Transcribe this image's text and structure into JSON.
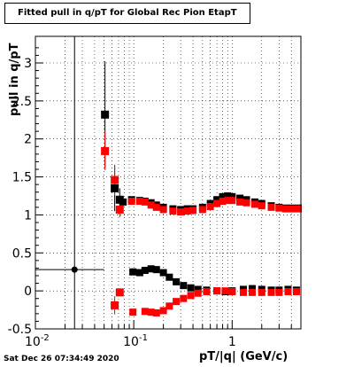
{
  "chart_data": {
    "type": "scatter",
    "title": "Fitted pull in q/pT for Global Rec Pion EtapT",
    "xlabel": "pT/|q| (GeV/c)",
    "ylabel": "pull in q/pT",
    "xscale": "log",
    "xlim": [
      0.01,
      5.0
    ],
    "ylim": [
      -0.5,
      3.35
    ],
    "x_ticks": [
      "10^-2",
      "10^-1",
      "1"
    ],
    "y_ticks": [
      "-0.5",
      "0",
      "0.5",
      "1",
      "1.5",
      "2",
      "2.5",
      "3"
    ],
    "grid": true,
    "series": [
      {
        "color": "#000000",
        "points": [
          {
            "x": 0.025,
            "y": 0.28,
            "xerr_lo": 0.015,
            "xerr_hi": 0.025,
            "yerr": 3.1
          },
          {
            "x": 0.051,
            "y": 2.32,
            "yerr": 0.7
          },
          {
            "x": 0.064,
            "y": 1.35,
            "yerr": 0.3
          },
          {
            "x": 0.072,
            "y": 1.2,
            "yerr": 0.15
          },
          {
            "x": 0.078,
            "y": 1.17
          },
          {
            "x": 0.095,
            "y": 1.2
          },
          {
            "x": 0.115,
            "y": 1.19
          },
          {
            "x": 0.13,
            "y": 1.18
          },
          {
            "x": 0.15,
            "y": 1.16
          },
          {
            "x": 0.17,
            "y": 1.13
          },
          {
            "x": 0.2,
            "y": 1.1
          },
          {
            "x": 0.25,
            "y": 1.08
          },
          {
            "x": 0.3,
            "y": 1.07
          },
          {
            "x": 0.35,
            "y": 1.08
          },
          {
            "x": 0.4,
            "y": 1.08
          },
          {
            "x": 0.5,
            "y": 1.1
          },
          {
            "x": 0.6,
            "y": 1.15
          },
          {
            "x": 0.7,
            "y": 1.2
          },
          {
            "x": 0.8,
            "y": 1.24
          },
          {
            "x": 0.9,
            "y": 1.25
          },
          {
            "x": 1.0,
            "y": 1.24
          },
          {
            "x": 1.2,
            "y": 1.22
          },
          {
            "x": 1.4,
            "y": 1.2
          },
          {
            "x": 1.7,
            "y": 1.17
          },
          {
            "x": 2.0,
            "y": 1.15
          },
          {
            "x": 2.5,
            "y": 1.12
          },
          {
            "x": 3.0,
            "y": 1.1
          },
          {
            "x": 3.5,
            "y": 1.09
          },
          {
            "x": 4.0,
            "y": 1.09
          },
          {
            "x": 4.7,
            "y": 1.09
          },
          {
            "x": 0.098,
            "y": 0.25
          },
          {
            "x": 0.115,
            "y": 0.24
          },
          {
            "x": 0.13,
            "y": 0.27
          },
          {
            "x": 0.15,
            "y": 0.29
          },
          {
            "x": 0.17,
            "y": 0.28
          },
          {
            "x": 0.2,
            "y": 0.24
          },
          {
            "x": 0.23,
            "y": 0.18
          },
          {
            "x": 0.27,
            "y": 0.12
          },
          {
            "x": 0.32,
            "y": 0.07
          },
          {
            "x": 0.38,
            "y": 0.04
          },
          {
            "x": 0.45,
            "y": 0.02
          },
          {
            "x": 0.55,
            "y": 0.01
          },
          {
            "x": 0.7,
            "y": 0.0
          },
          {
            "x": 0.85,
            "y": -0.01
          },
          {
            "x": 1.0,
            "y": 0.0
          },
          {
            "x": 1.3,
            "y": 0.02
          },
          {
            "x": 1.6,
            "y": 0.03
          },
          {
            "x": 2.0,
            "y": 0.02
          },
          {
            "x": 2.5,
            "y": 0.01
          },
          {
            "x": 3.0,
            "y": 0.01
          },
          {
            "x": 3.7,
            "y": 0.02
          },
          {
            "x": 4.5,
            "y": 0.01
          }
        ]
      },
      {
        "color": "#ff0000",
        "points": [
          {
            "x": 0.051,
            "y": 1.84,
            "yerr": 0.25
          },
          {
            "x": 0.064,
            "y": 1.46,
            "yerr": 0.2
          },
          {
            "x": 0.072,
            "y": 1.07,
            "yerr": 0.1
          },
          {
            "x": 0.095,
            "y": 1.18
          },
          {
            "x": 0.115,
            "y": 1.18
          },
          {
            "x": 0.13,
            "y": 1.17
          },
          {
            "x": 0.15,
            "y": 1.13
          },
          {
            "x": 0.17,
            "y": 1.1
          },
          {
            "x": 0.2,
            "y": 1.07
          },
          {
            "x": 0.25,
            "y": 1.05
          },
          {
            "x": 0.3,
            "y": 1.04
          },
          {
            "x": 0.35,
            "y": 1.05
          },
          {
            "x": 0.4,
            "y": 1.06
          },
          {
            "x": 0.5,
            "y": 1.07
          },
          {
            "x": 0.6,
            "y": 1.11
          },
          {
            "x": 0.7,
            "y": 1.15
          },
          {
            "x": 0.8,
            "y": 1.18
          },
          {
            "x": 0.9,
            "y": 1.19
          },
          {
            "x": 1.0,
            "y": 1.19
          },
          {
            "x": 1.2,
            "y": 1.17
          },
          {
            "x": 1.4,
            "y": 1.16
          },
          {
            "x": 1.7,
            "y": 1.14
          },
          {
            "x": 2.0,
            "y": 1.12
          },
          {
            "x": 2.5,
            "y": 1.1
          },
          {
            "x": 3.0,
            "y": 1.09
          },
          {
            "x": 3.5,
            "y": 1.08
          },
          {
            "x": 4.0,
            "y": 1.08
          },
          {
            "x": 4.7,
            "y": 1.08
          },
          {
            "x": 0.064,
            "y": -0.19,
            "yerr": 0.12
          },
          {
            "x": 0.072,
            "y": -0.02,
            "yerr": 0.05
          },
          {
            "x": 0.098,
            "y": -0.28
          },
          {
            "x": 0.13,
            "y": -0.27
          },
          {
            "x": 0.15,
            "y": -0.28
          },
          {
            "x": 0.17,
            "y": -0.29
          },
          {
            "x": 0.2,
            "y": -0.26
          },
          {
            "x": 0.23,
            "y": -0.2
          },
          {
            "x": 0.27,
            "y": -0.14
          },
          {
            "x": 0.32,
            "y": -0.1
          },
          {
            "x": 0.38,
            "y": -0.06
          },
          {
            "x": 0.45,
            "y": -0.03
          },
          {
            "x": 0.55,
            "y": -0.01
          },
          {
            "x": 0.7,
            "y": 0.0
          },
          {
            "x": 0.85,
            "y": 0.0
          },
          {
            "x": 1.0,
            "y": -0.01
          },
          {
            "x": 1.3,
            "y": -0.02
          },
          {
            "x": 1.6,
            "y": -0.02
          },
          {
            "x": 2.0,
            "y": -0.02
          },
          {
            "x": 2.5,
            "y": -0.02
          },
          {
            "x": 3.0,
            "y": -0.02
          },
          {
            "x": 3.7,
            "y": -0.01
          },
          {
            "x": 4.5,
            "y": -0.01
          }
        ]
      }
    ]
  },
  "footer": {
    "timestamp": "Sat Dec 26 07:34:49 2020"
  }
}
